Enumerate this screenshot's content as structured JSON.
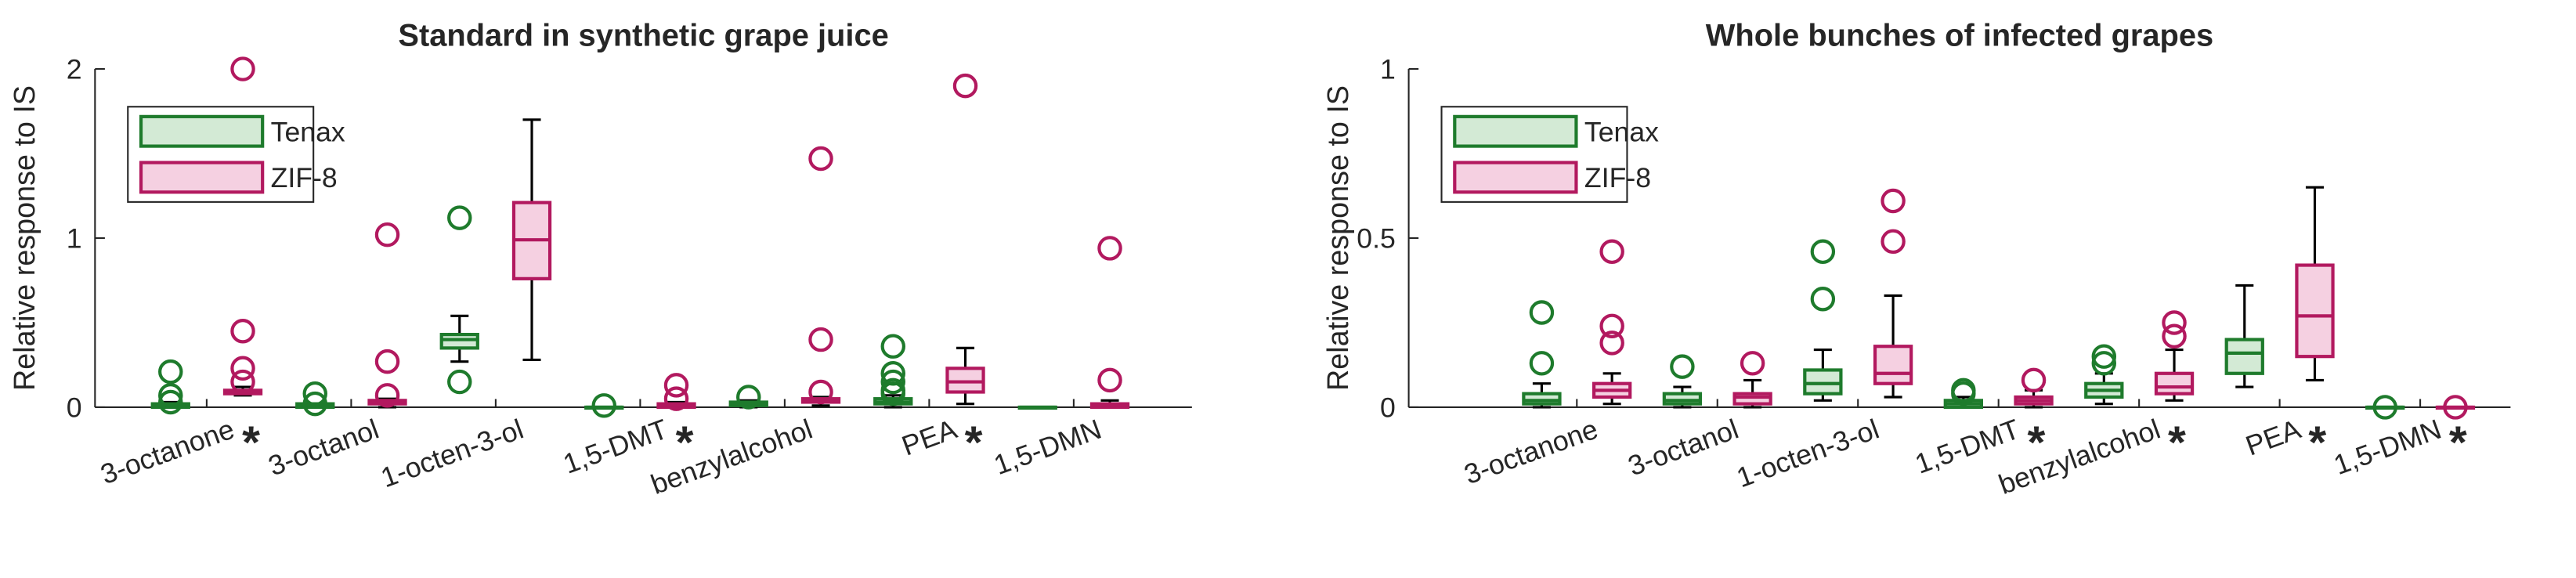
{
  "chart_data": [
    {
      "type": "box",
      "title": "Standard in synthetic grape juice",
      "ylabel": "Relative response to IS",
      "ylim": [
        0,
        2
      ],
      "yticks": [
        0,
        1,
        2
      ],
      "legend": "upper left",
      "categories": [
        "3-octanone",
        "3-octanol",
        "1-octen-3-ol",
        "1,5-DMT",
        "benzylalcohol",
        "PEA",
        "1,5-DMN"
      ],
      "significance": [
        "*",
        null,
        null,
        "*",
        null,
        "*",
        null
      ],
      "series": [
        {
          "name": "Tenax",
          "color": "#1e7b2c",
          "fill": "#d3ead5",
          "boxes": [
            {
              "whisker_low": 0,
              "q1": 0,
              "median": 0.01,
              "q3": 0.02,
              "whisker_high": 0.03,
              "outliers": [
                0.21,
                0.07,
                0.03
              ]
            },
            {
              "whisker_low": 0,
              "q1": 0,
              "median": 0.01,
              "q3": 0.02,
              "whisker_high": 0.02,
              "outliers": [
                0.08,
                0.02
              ]
            },
            {
              "whisker_low": 0.27,
              "q1": 0.35,
              "median": 0.4,
              "q3": 0.43,
              "whisker_high": 0.54,
              "outliers": [
                1.12,
                0.15
              ]
            },
            {
              "whisker_low": 0,
              "q1": 0,
              "median": 0,
              "q3": 0,
              "whisker_high": 0,
              "outliers": [
                0.01
              ]
            },
            {
              "whisker_low": 0,
              "q1": 0.01,
              "median": 0.02,
              "q3": 0.03,
              "whisker_high": 0.04,
              "outliers": [
                0.06
              ]
            },
            {
              "whisker_low": 0,
              "q1": 0.02,
              "median": 0.03,
              "q3": 0.05,
              "whisker_high": 0.07,
              "outliers": [
                0.36,
                0.2,
                0.15,
                0.1,
                0.08
              ]
            },
            {
              "whisker_low": 0,
              "q1": 0,
              "median": 0,
              "q3": 0,
              "whisker_high": 0,
              "outliers": []
            }
          ]
        },
        {
          "name": "ZIF-8",
          "color": "#b2195f",
          "fill": "#f5d0e1",
          "boxes": [
            {
              "whisker_low": 0.07,
              "q1": 0.08,
              "median": 0.09,
              "q3": 0.1,
              "whisker_high": 0.12,
              "outliers": [
                2,
                0.45,
                0.23,
                0.15
              ]
            },
            {
              "whisker_low": 0,
              "q1": 0.02,
              "median": 0.03,
              "q3": 0.04,
              "whisker_high": 0.05,
              "outliers": [
                1.02,
                0.27,
                0.07
              ]
            },
            {
              "whisker_low": 0.28,
              "q1": 0.76,
              "median": 0.99,
              "q3": 1.21,
              "whisker_high": 1.7,
              "outliers": []
            },
            {
              "whisker_low": 0,
              "q1": 0,
              "median": 0.01,
              "q3": 0.02,
              "whisker_high": 0.03,
              "outliers": [
                0.13,
                0.05
              ]
            },
            {
              "whisker_low": 0.01,
              "q1": 0.03,
              "median": 0.04,
              "q3": 0.05,
              "whisker_high": 0.06,
              "outliers": [
                1.47,
                0.4,
                0.09
              ]
            },
            {
              "whisker_low": 0.02,
              "q1": 0.09,
              "median": 0.15,
              "q3": 0.23,
              "whisker_high": 0.35,
              "outliers": [
                1.9
              ]
            },
            {
              "whisker_low": 0,
              "q1": 0,
              "median": 0.01,
              "q3": 0.02,
              "whisker_high": 0.04,
              "outliers": [
                0.94,
                0.16
              ]
            }
          ]
        }
      ]
    },
    {
      "type": "box",
      "title": "Whole bunches of infected grapes",
      "ylabel": "Relative response to IS",
      "ylim": [
        0,
        1
      ],
      "yticks": [
        0,
        0.5,
        1
      ],
      "legend": "upper left",
      "categories": [
        "3-octanone",
        "3-octanol",
        "1-octen-3-ol",
        "1,5-DMT",
        "benzylalcohol",
        "PEA",
        "1,5-DMN"
      ],
      "significance": [
        null,
        null,
        null,
        "*",
        "*",
        "*",
        "*"
      ],
      "series": [
        {
          "name": "Tenax",
          "color": "#1e7b2c",
          "fill": "#d3ead5",
          "boxes": [
            {
              "whisker_low": 0,
              "q1": 0.01,
              "median": 0.02,
              "q3": 0.04,
              "whisker_high": 0.07,
              "outliers": [
                0.28,
                0.13
              ]
            },
            {
              "whisker_low": 0,
              "q1": 0.01,
              "median": 0.02,
              "q3": 0.04,
              "whisker_high": 0.06,
              "outliers": [
                0.12
              ]
            },
            {
              "whisker_low": 0.02,
              "q1": 0.04,
              "median": 0.07,
              "q3": 0.11,
              "whisker_high": 0.17,
              "outliers": [
                0.46,
                0.32
              ]
            },
            {
              "whisker_low": 0,
              "q1": 0,
              "median": 0.01,
              "q3": 0.02,
              "whisker_high": 0.03,
              "outliers": [
                0.05,
                0.04
              ]
            },
            {
              "whisker_low": 0.01,
              "q1": 0.03,
              "median": 0.05,
              "q3": 0.07,
              "whisker_high": 0.1,
              "outliers": [
                0.15,
                0.13
              ]
            },
            {
              "whisker_low": 0.06,
              "q1": 0.1,
              "median": 0.16,
              "q3": 0.2,
              "whisker_high": 0.36,
              "outliers": []
            },
            {
              "whisker_low": 0,
              "q1": 0,
              "median": 0,
              "q3": 0,
              "whisker_high": 0,
              "outliers": [
                0
              ]
            }
          ]
        },
        {
          "name": "ZIF-8",
          "color": "#b2195f",
          "fill": "#f5d0e1",
          "boxes": [
            {
              "whisker_low": 0.01,
              "q1": 0.03,
              "median": 0.05,
              "q3": 0.07,
              "whisker_high": 0.1,
              "outliers": [
                0.46,
                0.24,
                0.19
              ]
            },
            {
              "whisker_low": 0,
              "q1": 0.01,
              "median": 0.03,
              "q3": 0.04,
              "whisker_high": 0.08,
              "outliers": [
                0.13
              ]
            },
            {
              "whisker_low": 0.03,
              "q1": 0.07,
              "median": 0.1,
              "q3": 0.18,
              "whisker_high": 0.33,
              "outliers": [
                0.61,
                0.49
              ]
            },
            {
              "whisker_low": 0,
              "q1": 0.01,
              "median": 0.02,
              "q3": 0.03,
              "whisker_high": 0.05,
              "outliers": [
                0.08
              ]
            },
            {
              "whisker_low": 0.02,
              "q1": 0.04,
              "median": 0.06,
              "q3": 0.1,
              "whisker_high": 0.17,
              "outliers": [
                0.25,
                0.21
              ]
            },
            {
              "whisker_low": 0.08,
              "q1": 0.15,
              "median": 0.27,
              "q3": 0.42,
              "whisker_high": 0.65,
              "outliers": []
            },
            {
              "whisker_low": 0,
              "q1": 0,
              "median": 0,
              "q3": 0,
              "whisker_high": 0,
              "outliers": [
                0
              ]
            }
          ]
        }
      ]
    }
  ]
}
